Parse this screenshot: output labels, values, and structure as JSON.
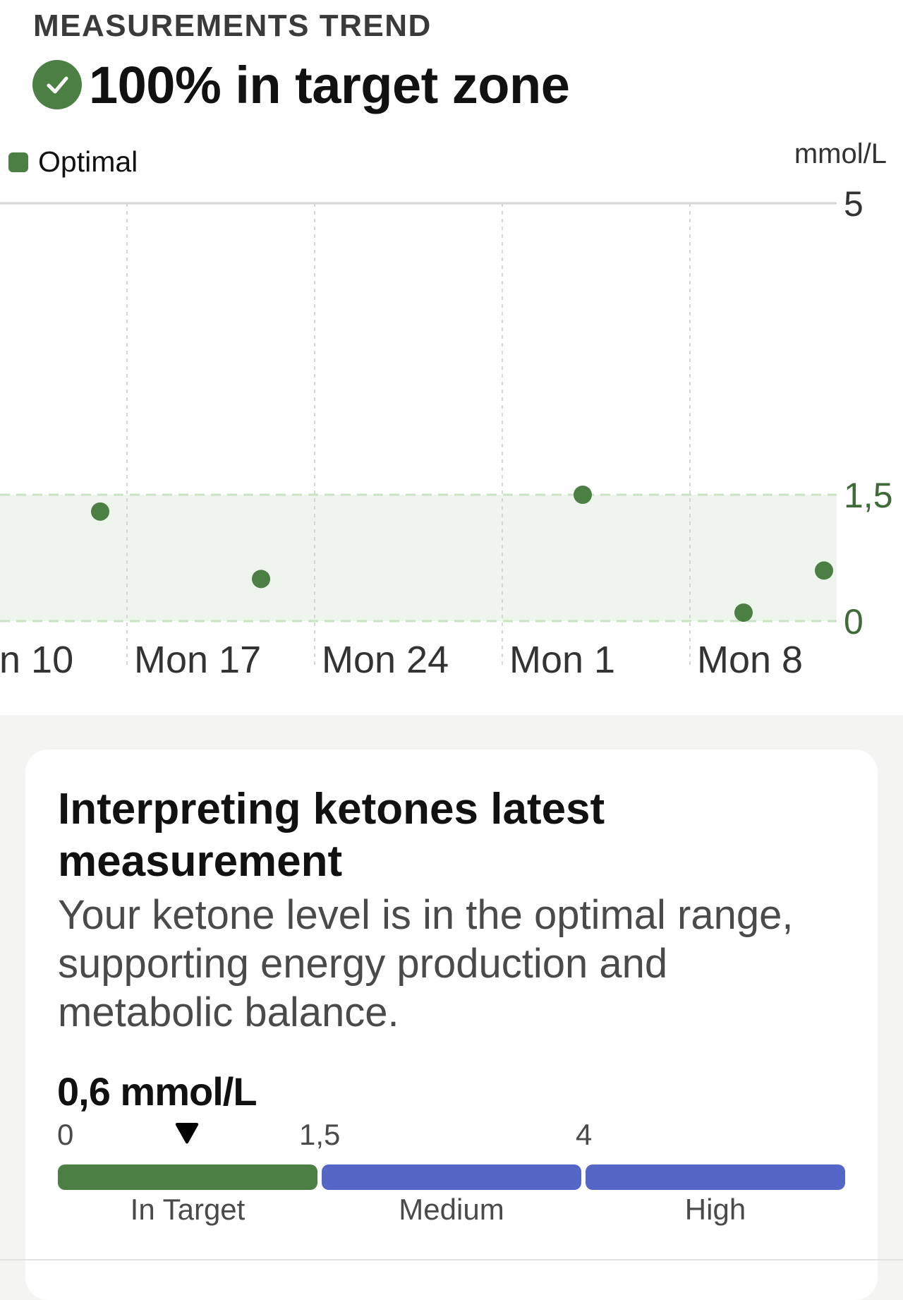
{
  "header": {
    "section_title": "MEASUREMENTS TREND",
    "headline": "100% in target zone",
    "status_icon": "check-circle-icon"
  },
  "legend": {
    "label": "Optimal",
    "color": "#4b7f44"
  },
  "chart_data": {
    "type": "scatter",
    "unit": "mmol/L",
    "x_tick_labels": [
      "Mon 10",
      "Mon 17",
      "Mon 24",
      "Mon 1",
      "Mon 8"
    ],
    "y_tick_labels": [
      "5",
      "1,5",
      "0"
    ],
    "ylim": [
      0,
      5
    ],
    "y_axis_position": "right",
    "target_band": {
      "from": 0,
      "to": 1.5,
      "label": "Optimal",
      "color": "#4b7f44"
    },
    "points": [
      {
        "date": "Mon 10 + 6 days",
        "value": 1.3
      },
      {
        "date": "Mon 17 + 5 days",
        "value": 0.5
      },
      {
        "date": "Mon 1 + 3 days",
        "value": 1.5
      },
      {
        "date": "Mon 1 + 9 days",
        "value": 0.1
      },
      {
        "date": "Mon 8 + 5 days",
        "value": 0.6
      }
    ],
    "grid": true,
    "legend_position": "top-left",
    "colors": {
      "point": "#4b7f44",
      "band": "#eef5ec",
      "band_edge": "#c9e3c4",
      "grid": "#d6d6d6"
    }
  },
  "card": {
    "title": "Interpreting ketones latest measurement",
    "body": "Your ketone level is in the optimal range, supporting energy production and metabolic balance.",
    "current_value": "0,6 mmol/L",
    "current_numeric": 0.6,
    "scale_ticks": [
      "0",
      "1,5",
      "4"
    ],
    "segments": [
      {
        "label": "In Target",
        "color": "#4b7f44"
      },
      {
        "label": "Medium",
        "color": "#5567c6"
      },
      {
        "label": "High",
        "color": "#5567c6"
      }
    ]
  }
}
